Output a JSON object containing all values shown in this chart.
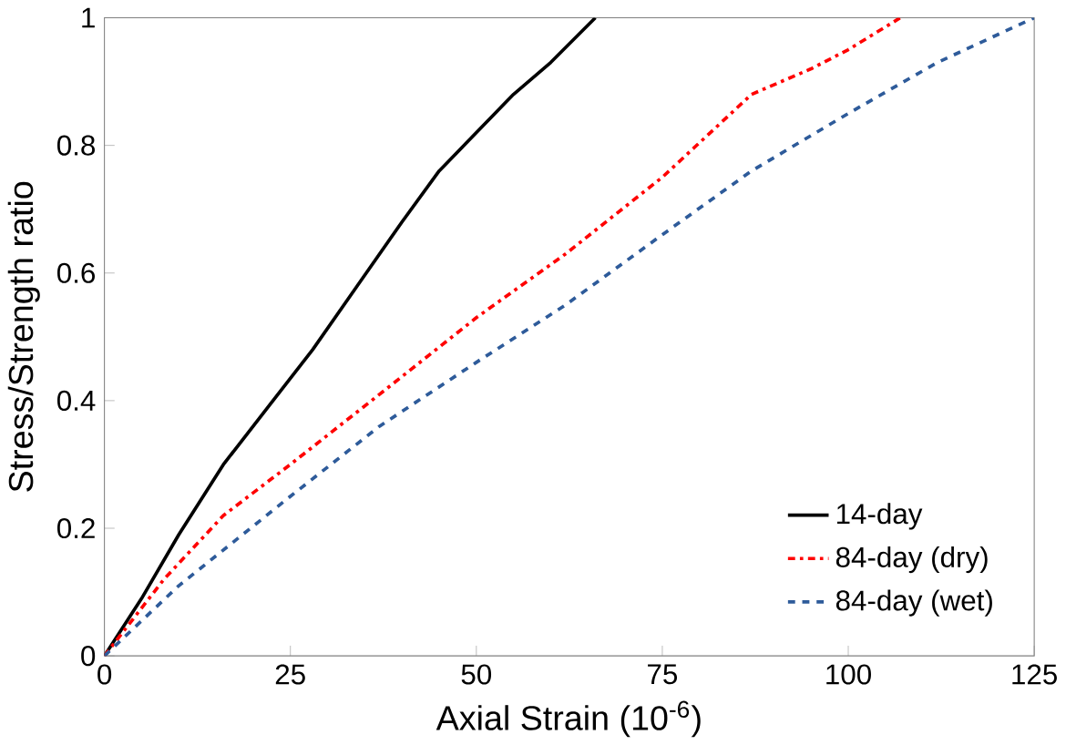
{
  "chart_data": {
    "type": "line",
    "xlabel": "Axial Strain (10$^{-6}$)",
    "ylabel": "Stress/Strength ratio",
    "xlim": [
      0,
      125
    ],
    "ylim": [
      0,
      1
    ],
    "xticks": [
      0,
      25,
      50,
      75,
      100,
      125
    ],
    "yticks": [
      0,
      0.2,
      0.4,
      0.6,
      0.8,
      1
    ],
    "legend": "bottom right",
    "grid": false,
    "marker": "none",
    "series": [
      {
        "name": "14-day",
        "color": "#000000",
        "line_style": "solid",
        "x": [
          0,
          5,
          10,
          16,
          22,
          28,
          34,
          40,
          45,
          50,
          55,
          60,
          66
        ],
        "values": [
          0,
          0.09,
          0.19,
          0.3,
          0.39,
          0.48,
          0.58,
          0.68,
          0.76,
          0.82,
          0.88,
          0.93,
          1
        ]
      },
      {
        "name": "84-day (dry)",
        "color": "#ff0000",
        "line_style": "dashdot",
        "x": [
          0,
          8,
          16,
          25,
          37,
          50,
          62,
          75,
          87,
          95,
          100,
          107
        ],
        "values": [
          0,
          0.12,
          0.22,
          0.3,
          0.41,
          0.53,
          0.63,
          0.75,
          0.88,
          0.92,
          0.95,
          1
        ]
      },
      {
        "name": "84-day (wet)",
        "color": "#2e5b9a",
        "line_style": "dashed",
        "x": [
          0,
          10,
          25,
          37,
          50,
          62,
          75,
          87,
          100,
          112,
          125
        ],
        "values": [
          0,
          0.11,
          0.25,
          0.36,
          0.46,
          0.55,
          0.66,
          0.76,
          0.85,
          0.93,
          1
        ]
      }
    ]
  }
}
